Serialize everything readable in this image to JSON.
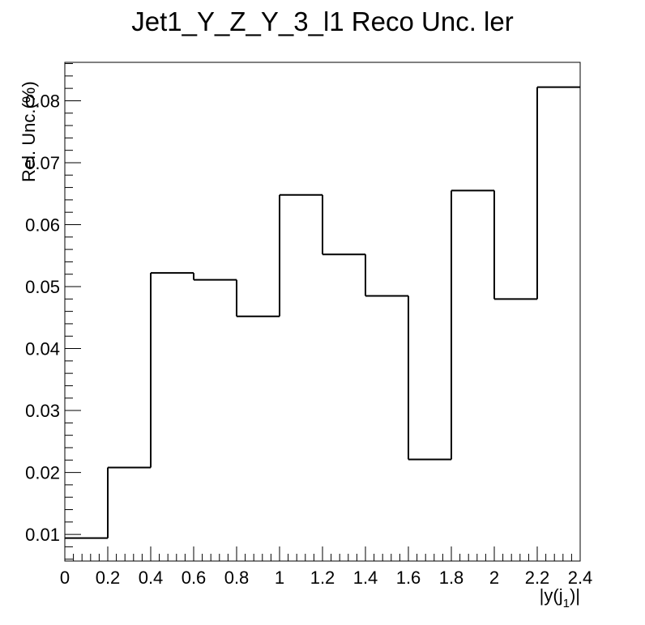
{
  "chart_data": {
    "type": "bar",
    "style": "step-histogram",
    "title": "Jet1_Y_Z_Y_3_l1 Reco Unc. ler",
    "xlabel": "|y(j_1)|",
    "ylabel": "Rel. Unc.(%)",
    "xlim": [
      0,
      2.4
    ],
    "ylim": [
      0.0057,
      0.0862
    ],
    "grid": false,
    "x_ticks": [
      "0",
      "0.2",
      "0.4",
      "0.6",
      "0.8",
      "1",
      "1.2",
      "1.4",
      "1.6",
      "1.8",
      "2",
      "2.2",
      "2.4"
    ],
    "y_ticks": [
      "0.01",
      "0.02",
      "0.03",
      "0.04",
      "0.05",
      "0.06",
      "0.07",
      "0.08"
    ],
    "bin_edges": [
      0,
      0.2,
      0.4,
      0.6,
      0.8,
      1.0,
      1.2,
      1.4,
      1.6,
      1.8,
      2.0,
      2.2,
      2.4
    ],
    "values": [
      0.0094,
      0.0208,
      0.0522,
      0.0511,
      0.0452,
      0.0648,
      0.0552,
      0.0485,
      0.0221,
      0.0655,
      0.048,
      0.0822
    ],
    "line_color": "#000000"
  }
}
